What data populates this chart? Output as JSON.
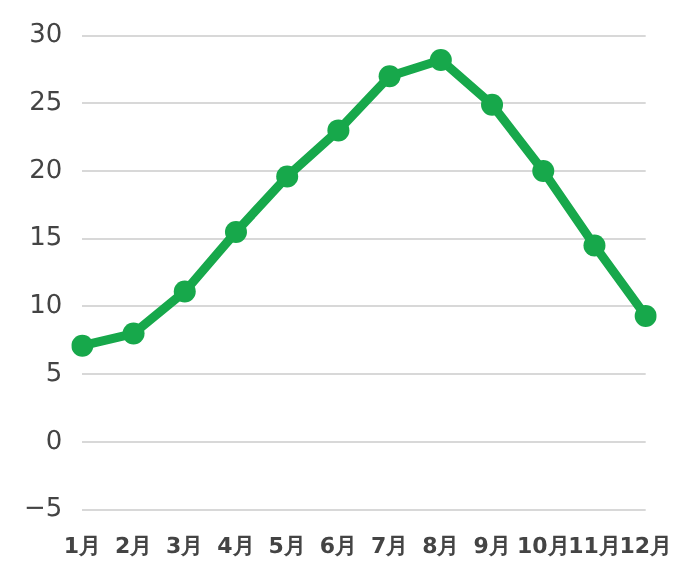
{
  "chart_data": {
    "type": "line",
    "categories": [
      "1月",
      "2月",
      "3月",
      "4月",
      "5月",
      "6月",
      "7月",
      "8月",
      "9月",
      "10月",
      "11月",
      "12月"
    ],
    "series": [
      {
        "color": "#17a84b",
        "values": [
          7.1,
          8.0,
          11.1,
          15.5,
          19.6,
          23.0,
          27.0,
          28.2,
          24.9,
          20.0,
          14.5,
          9.3
        ]
      }
    ],
    "ylim": [
      -5,
      30
    ],
    "yticks": [
      -5,
      0,
      5,
      10,
      15,
      20,
      25,
      30
    ],
    "grid": "y",
    "legend": false,
    "marker": "circle",
    "line_style": "solid"
  }
}
